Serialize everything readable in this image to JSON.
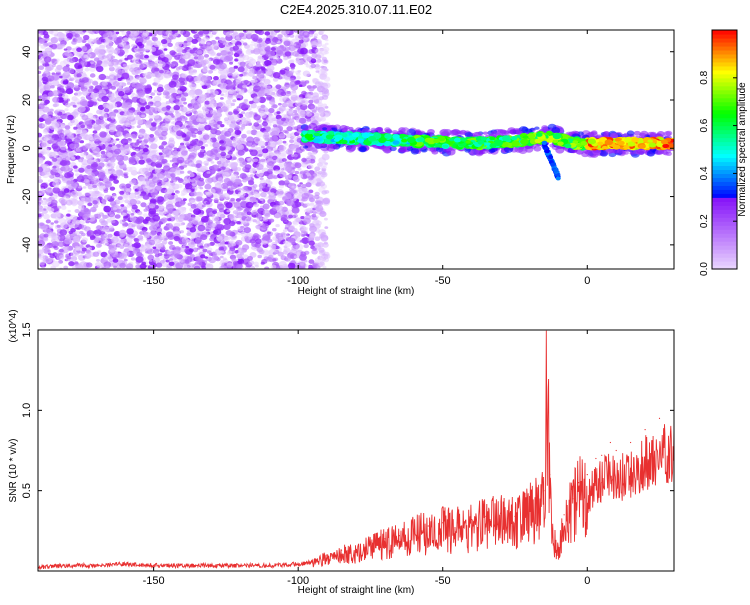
{
  "title": "C2E4.2025.310.07.11.E02",
  "chart_data": [
    {
      "type": "heatmap",
      "title": "C2E4.2025.310.07.11.E02",
      "xlabel": "Height of straight line (km)",
      "ylabel": "Frequency (Hz)",
      "xlim": [
        -190,
        30
      ],
      "ylim": [
        -50,
        49
      ],
      "xticks": [
        -150,
        -100,
        -50,
        0
      ],
      "yticks": [
        -40,
        -20,
        0,
        20,
        40
      ],
      "colorbar": {
        "label": "Normalized spectral amplitude",
        "range": [
          0,
          1
        ],
        "ticks": [
          "0.0",
          "0.2",
          "0.4",
          "0.6",
          "0.8"
        ]
      },
      "regions": [
        {
          "name": "broadband noise",
          "x_range": [
            -190,
            -94
          ],
          "y_range": [
            -50,
            49
          ],
          "amplitude": "0.05-0.3"
        },
        {
          "name": "signal band",
          "x_range": [
            -98,
            30
          ],
          "center_frequency": [
            5,
            4,
            3,
            2,
            3,
            5,
            2,
            2,
            2
          ],
          "center_x": [
            -98,
            -80,
            -60,
            -40,
            -25,
            -13,
            -5,
            10,
            30
          ],
          "amplitude": "0.3-0.95"
        },
        {
          "name": "tail",
          "x_range": [
            -15,
            -10
          ],
          "y_range": [
            -12,
            2
          ],
          "amplitude": "0.2-0.4"
        }
      ]
    },
    {
      "type": "line",
      "xlabel": "Height of straight line (km)",
      "ylabel": "SNR (10 * v/v)",
      "y_multiplier": "(x10^4)",
      "xlim": [
        -190,
        30
      ],
      "ylim": [
        0,
        1.5
      ],
      "xticks": [
        -150,
        -100,
        -50,
        0
      ],
      "yticks": [
        "0.5",
        "1.0",
        "1.5"
      ],
      "series": [
        {
          "name": "SNR",
          "color": "#e83030",
          "x": [
            -190,
            -180,
            -170,
            -160,
            -150,
            -140,
            -130,
            -120,
            -110,
            -100,
            -95,
            -90,
            -85,
            -80,
            -75,
            -70,
            -65,
            -60,
            -55,
            -50,
            -45,
            -40,
            -35,
            -30,
            -25,
            -20,
            -17,
            -15,
            -14,
            -13,
            -12,
            -10,
            -8,
            -5,
            -3,
            0,
            3,
            5,
            8,
            10,
            15,
            20,
            25,
            30
          ],
          "y": [
            0.02,
            0.03,
            0.03,
            0.04,
            0.03,
            0.03,
            0.03,
            0.03,
            0.03,
            0.04,
            0.05,
            0.1,
            0.13,
            0.12,
            0.18,
            0.2,
            0.22,
            0.26,
            0.28,
            0.3,
            0.3,
            0.32,
            0.34,
            0.36,
            0.34,
            0.42,
            0.45,
            0.5,
            1.5,
            0.6,
            0.25,
            0.12,
            0.35,
            0.45,
            0.55,
            0.6,
            0.7,
            0.72,
            0.8,
            0.75,
            0.8,
            0.88,
            0.95,
            0.98
          ]
        }
      ]
    }
  ]
}
